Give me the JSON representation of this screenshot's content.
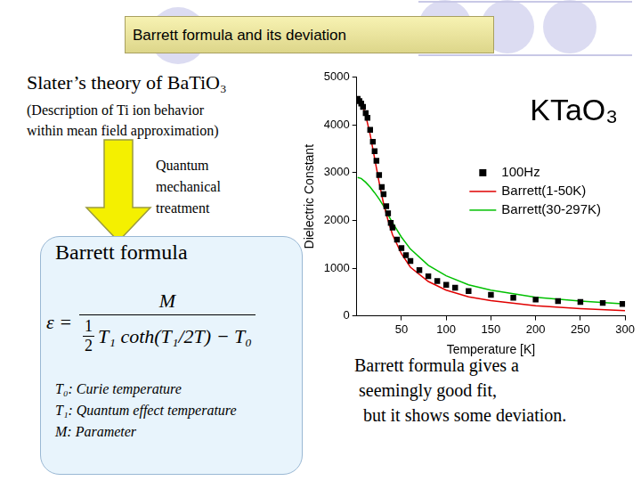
{
  "header": {
    "title": "Barrett formula and its deviation"
  },
  "left": {
    "heading": "Slater’s theory of BaTiO₃",
    "description": [
      "(Description of Ti ion behavior",
      "within mean field approximation)"
    ],
    "arrow_label": [
      "Quantum",
      "mechanical",
      "treatment"
    ],
    "box": {
      "title": "Barrett formula",
      "equation": {
        "lhs": "ε =",
        "numerator": "M",
        "half_numerator": "1",
        "half_denominator": "2",
        "denominator": "T₁ coth(T₁/2T) − T₀"
      },
      "definitions": [
        "T₀: Curie temperature",
        "T₁: Quantum effect temperature",
        "M: Parameter"
      ]
    }
  },
  "note": [
    "Barrett formula gives a",
    " seemingly good fit,",
    "  but it shows some deviation."
  ],
  "chart_data": {
    "type": "scatter",
    "title": "KTaO₃",
    "x_label": "Temperature [K]",
    "y_label": "Dielectric Constant",
    "xlim": [
      0,
      300
    ],
    "xticks": [
      50,
      100,
      150,
      200,
      250,
      300
    ],
    "ylim": [
      0,
      5000
    ],
    "yticks": [
      0,
      1000,
      2000,
      3000,
      4000,
      5000
    ],
    "grid": false,
    "legend": "right",
    "series": [
      {
        "name": "100Hz",
        "type": "scatter",
        "marker": "square",
        "color": "#000000",
        "x": [
          1,
          3,
          5,
          7,
          10,
          12,
          15,
          18,
          20,
          22,
          25,
          28,
          30,
          33,
          35,
          38,
          40,
          45,
          50,
          55,
          60,
          70,
          80,
          90,
          100,
          110,
          125,
          150,
          175,
          200,
          225,
          250,
          275,
          297
        ],
        "values": [
          4550,
          4500,
          4450,
          4380,
          4250,
          4150,
          3900,
          3650,
          3450,
          3250,
          2950,
          2700,
          2550,
          2300,
          2150,
          1950,
          1850,
          1600,
          1420,
          1270,
          1150,
          960,
          830,
          730,
          650,
          590,
          520,
          440,
          380,
          340,
          310,
          290,
          270,
          250
        ]
      },
      {
        "name": "Barrett(1-50K)",
        "type": "line",
        "line_style": "solid",
        "color": "#e00000",
        "x": [
          1,
          5,
          10,
          15,
          20,
          25,
          30,
          35,
          40,
          50,
          60,
          80,
          100,
          125,
          150,
          200,
          250,
          300
        ],
        "values": [
          4600,
          4500,
          4200,
          3800,
          3300,
          2800,
          2350,
          2000,
          1700,
          1300,
          1020,
          720,
          540,
          400,
          320,
          210,
          150,
          110
        ]
      },
      {
        "name": "Barrett(30-297K)",
        "type": "line",
        "line_style": "solid",
        "color": "#00c000",
        "x": [
          1,
          5,
          10,
          15,
          20,
          25,
          30,
          35,
          40,
          50,
          60,
          80,
          100,
          125,
          150,
          200,
          250,
          300
        ],
        "values": [
          2900,
          2880,
          2800,
          2700,
          2580,
          2450,
          2300,
          2120,
          1950,
          1650,
          1400,
          1060,
          840,
          650,
          540,
          390,
          310,
          250
        ]
      }
    ]
  }
}
